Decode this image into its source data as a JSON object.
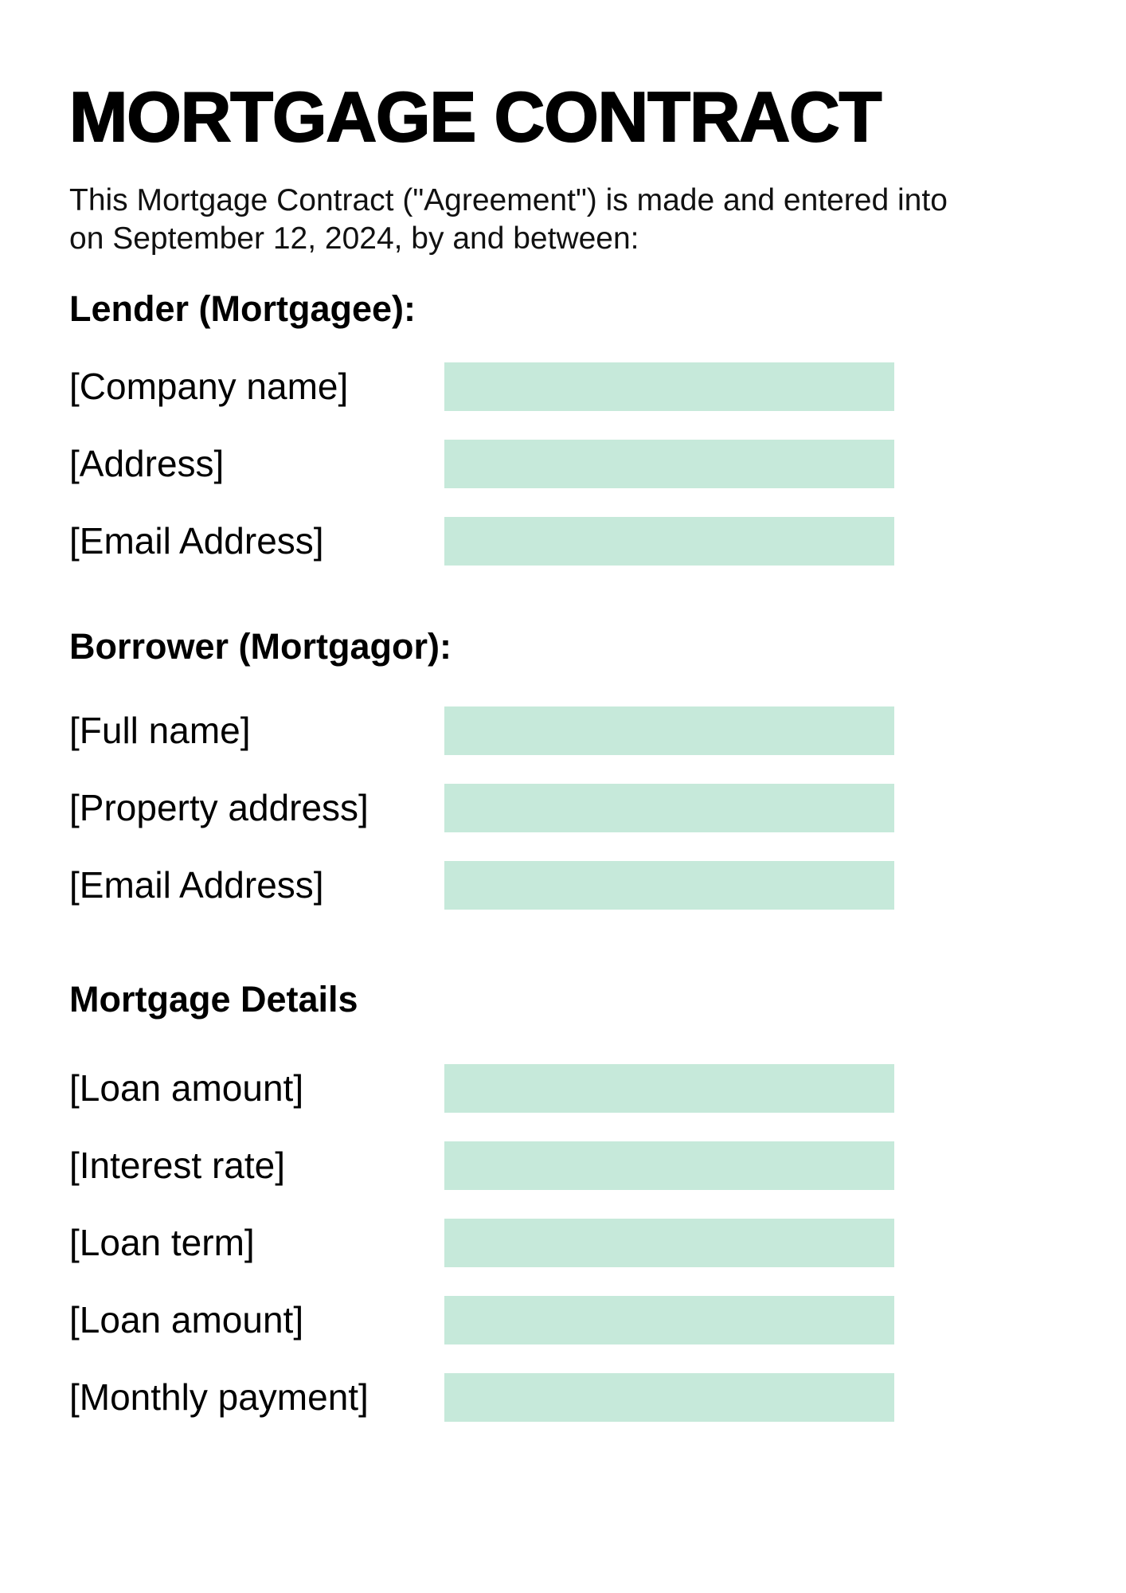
{
  "document": {
    "title": "MORTGAGE CONTRACT",
    "intro": "This Mortgage Contract (\"Agreement\") is made and entered into on September 12, 2024, by and between:",
    "date": "September 12, 2024"
  },
  "colors": {
    "field_fill": "#C6E9DA",
    "text": "#000000",
    "background": "#FFFFFF"
  },
  "sections": [
    {
      "heading": "Lender (Mortgagee):",
      "fields": [
        {
          "label": "[Company name]",
          "value": ""
        },
        {
          "label": "[Address]",
          "value": ""
        },
        {
          "label": "[Email Address]",
          "value": ""
        }
      ]
    },
    {
      "heading": "Borrower (Mortgagor):",
      "fields": [
        {
          "label": "[Full name]",
          "value": ""
        },
        {
          "label": "[Property address]",
          "value": ""
        },
        {
          "label": "[Email Address]",
          "value": ""
        }
      ]
    },
    {
      "heading": "Mortgage Details",
      "fields": [
        {
          "label": "[Loan amount]",
          "value": ""
        },
        {
          "label": "[Interest rate]",
          "value": ""
        },
        {
          "label": "[Loan term]",
          "value": ""
        },
        {
          "label": "[Loan amount]",
          "value": ""
        },
        {
          "label": "[Monthly payment]",
          "value": ""
        }
      ]
    }
  ]
}
